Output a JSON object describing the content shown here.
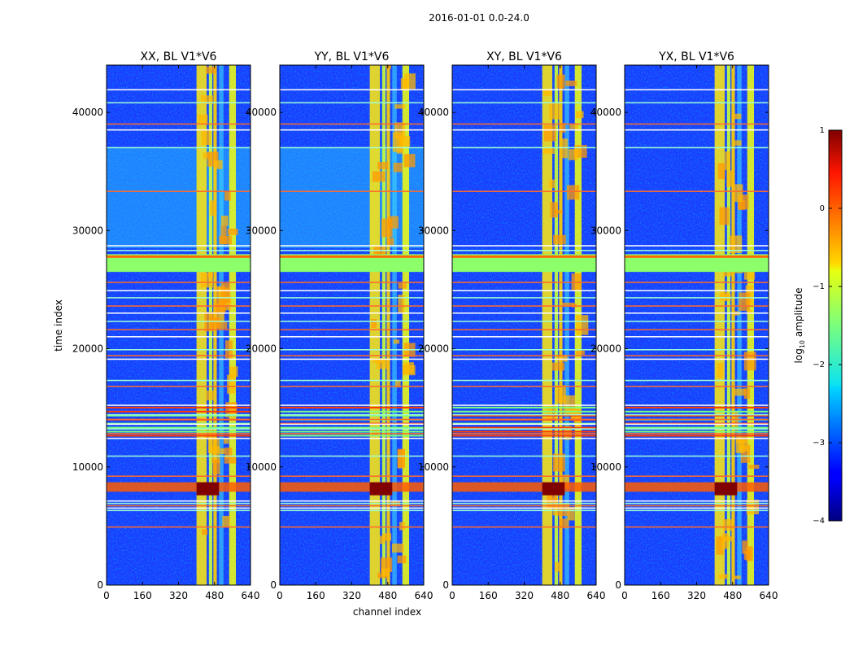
{
  "chart_data": {
    "type": "heatmap",
    "suptitle": "2016-01-01 0.0-24.0",
    "xlabel": "channel index",
    "ylabel": "time index",
    "xlim": [
      0,
      640
    ],
    "ylim": [
      0,
      44000
    ],
    "xticks": [
      0,
      160,
      320,
      480,
      640
    ],
    "yticks": [
      0,
      10000,
      20000,
      30000,
      40000
    ],
    "colormap": "jet",
    "panels": [
      {
        "title": "XX, BL V1*V6"
      },
      {
        "title": "YY, BL V1*V6"
      },
      {
        "title": "XY, BL V1*V6"
      },
      {
        "title": "YX, BL V1*V6"
      }
    ],
    "colorbar": {
      "label": "log10 amplitude",
      "label_text": "log",
      "label_sub": "10",
      "label_rest": " amplitude",
      "range": [
        -4,
        1
      ],
      "ticks": [
        1,
        0,
        -1,
        -2,
        -3,
        -4
      ],
      "tick_labels": [
        "1",
        "0",
        "−1",
        "−2",
        "−3",
        "−4"
      ]
    },
    "bright_channel_bands": [
      [
        400,
        445
      ],
      [
        455,
        470
      ],
      [
        475,
        490
      ],
      [
        500,
        520
      ],
      [
        545,
        575
      ]
    ],
    "saturated_time_bands": [
      [
        26500,
        28000
      ],
      [
        7900,
        8700
      ]
    ],
    "rfi_time_rows": [
      4900,
      6300,
      6500,
      6700,
      6900,
      7100,
      9200,
      10900,
      12400,
      12800,
      13200,
      13600,
      14000,
      14400,
      15200,
      16800,
      17300,
      19100,
      19400,
      19900,
      21000,
      21600,
      22300,
      23000,
      23600,
      24300,
      24900,
      25600,
      28300,
      28700,
      33300,
      37000,
      38500,
      39000,
      40800,
      41900
    ]
  }
}
